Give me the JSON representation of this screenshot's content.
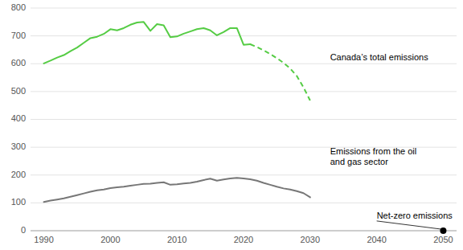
{
  "chart_data": {
    "type": "line",
    "series": [
      {
        "type": "line",
        "color": "#55cc44",
        "line_style": "solid",
        "x": [
          1990,
          1991,
          1992,
          1993,
          1994,
          1995,
          1996,
          1997,
          1998,
          1999,
          2000,
          2001,
          2002,
          2003,
          2004,
          2005,
          2006,
          2007,
          2008,
          2009,
          2010,
          2011,
          2012,
          2013,
          2014,
          2015,
          2016,
          2017,
          2018,
          2019,
          2020,
          2021
        ],
        "values": [
          601,
          611,
          622,
          631,
          645,
          658,
          675,
          692,
          697,
          707,
          724,
          720,
          728,
          740,
          748,
          750,
          718,
          742,
          738,
          695,
          698,
          708,
          716,
          724,
          728,
          720,
          702,
          714,
          728,
          728,
          668,
          670
        ]
      },
      {
        "type": "line",
        "color": "#55cc44",
        "line_style": "dashed",
        "x": [
          2021,
          2022,
          2023,
          2024,
          2025,
          2026,
          2027,
          2028,
          2029,
          2030
        ],
        "values": [
          670,
          660,
          648,
          635,
          620,
          603,
          583,
          556,
          515,
          468
        ]
      },
      {
        "type": "line",
        "color": "#777777",
        "line_style": "solid",
        "x": [
          1990,
          1991,
          1992,
          1993,
          1994,
          1995,
          1996,
          1997,
          1998,
          1999,
          2000,
          2001,
          2002,
          2003,
          2004,
          2005,
          2006,
          2007,
          2008,
          2009,
          2010,
          2011,
          2012,
          2013,
          2014,
          2015,
          2016,
          2017,
          2018,
          2019,
          2020,
          2021,
          2022,
          2023,
          2024,
          2025,
          2026,
          2027,
          2028,
          2029,
          2030
        ],
        "values": [
          103,
          108,
          112,
          116,
          122,
          128,
          134,
          140,
          145,
          148,
          153,
          156,
          158,
          162,
          165,
          168,
          169,
          172,
          174,
          165,
          167,
          170,
          172,
          176,
          182,
          187,
          180,
          184,
          188,
          190,
          188,
          185,
          180,
          172,
          165,
          158,
          152,
          148,
          142,
          135,
          120
        ]
      },
      {
        "type": "scatter",
        "color": "#000000",
        "marker": "circle",
        "x": [
          2050
        ],
        "values": [
          0
        ]
      }
    ],
    "annotations": [
      {
        "text": "Canada’s total emissions",
        "x": 2033,
        "y": 620
      },
      {
        "text": "Emissions from the oil\nand gas sector",
        "x": 2033,
        "y": 265
      },
      {
        "text": "Net-zero emissions",
        "x": 2040,
        "y": 35
      }
    ],
    "xlim": [
      1988,
      2052
    ],
    "ylim": [
      0,
      800
    ],
    "xticks": [
      1990,
      2000,
      2010,
      2020,
      2030,
      2040,
      2050
    ],
    "yticks": [
      0,
      100,
      200,
      300,
      400,
      500,
      600,
      700,
      800
    ],
    "grid": true
  }
}
